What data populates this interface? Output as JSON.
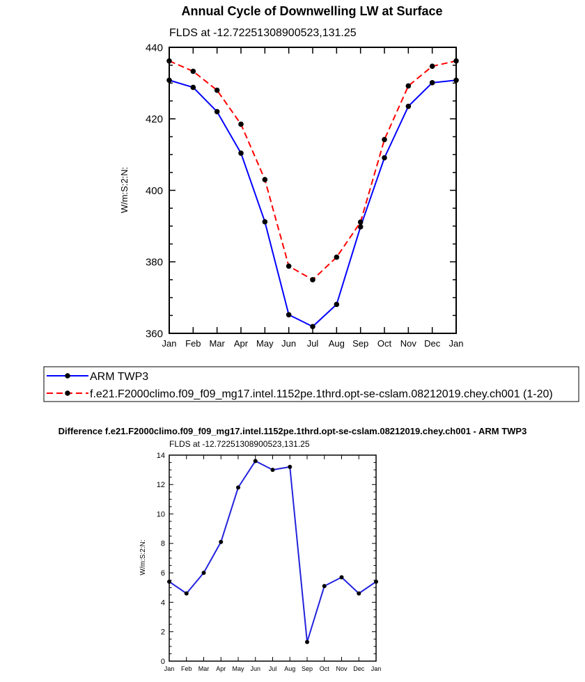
{
  "chart_data": [
    {
      "type": "line",
      "title": "Annual Cycle of Downwelling LW at Surface",
      "subtitle": "FLDS at -12.72251308900523,131.25",
      "xlabel": "",
      "ylabel": "W/m:S:2:N:",
      "categories": [
        "Jan",
        "Feb",
        "Mar",
        "Apr",
        "May",
        "Jun",
        "Jul",
        "Aug",
        "Sep",
        "Oct",
        "Nov",
        "Dec",
        "Jan"
      ],
      "ylim": [
        360,
        440
      ],
      "yticks": [
        360,
        380,
        400,
        420,
        440
      ],
      "series": [
        {
          "name": "ARM TWP3",
          "color": "#0000ff",
          "dash": "solid",
          "values": [
            430.8,
            428.8,
            422.0,
            410.4,
            391.2,
            365.2,
            361.9,
            368.1,
            389.8,
            409.1,
            423.5,
            430.1,
            430.8
          ]
        },
        {
          "name": "f.e21.F2000climo.f09_f09_mg17.intel.1152pe.1thrd.opt-se-cslam.08212019.chey.ch001 (1-20)",
          "color": "#ff0000",
          "dash": "dashed",
          "values": [
            436.2,
            433.3,
            428.0,
            418.5,
            403.0,
            378.8,
            375.0,
            381.3,
            391.1,
            414.2,
            429.2,
            434.7,
            436.2
          ]
        }
      ],
      "legend": "bottom"
    },
    {
      "type": "line",
      "title": "Difference f.e21.F2000climo.f09_f09_mg17.intel.1152pe.1thrd.opt-se-cslam.08212019.chey.ch001 - ARM TWP3",
      "subtitle": "FLDS at -12.72251308900523,131.25",
      "xlabel": "",
      "ylabel": "W/m:S:2:N:",
      "categories": [
        "Jan",
        "Feb",
        "Mar",
        "Apr",
        "May",
        "Jun",
        "Jul",
        "Aug",
        "Sep",
        "Oct",
        "Nov",
        "Dec",
        "Jan"
      ],
      "ylim": [
        0,
        14
      ],
      "yticks": [
        0,
        2,
        4,
        6,
        8,
        10,
        12,
        14
      ],
      "series": [
        {
          "name": "Difference",
          "color": "#2222dd",
          "values": [
            5.4,
            4.6,
            6.0,
            8.1,
            11.8,
            13.6,
            13.0,
            13.2,
            1.3,
            5.1,
            5.7,
            4.6,
            5.4
          ]
        }
      ]
    }
  ]
}
